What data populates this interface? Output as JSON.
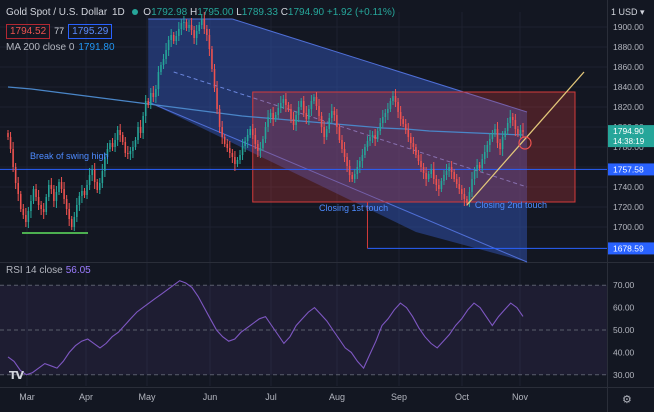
{
  "header": {
    "symbol": "Gold Spot / U.S. Dollar",
    "timeframe": "1D",
    "ohlc": [
      {
        "label": "O",
        "value": "1792.98"
      },
      {
        "label": "H",
        "value": "1795.00"
      },
      {
        "label": "L",
        "value": "1789.33"
      },
      {
        "label": "C",
        "value": "1794.90"
      }
    ],
    "change": "+1.92 (+0.11%)",
    "sell_price": "1794.52",
    "spread": "77",
    "buy_price": "1795.29",
    "ma_label": "MA 200 close 0",
    "ma_value": "1791.80",
    "currency_menu": "1 USD ▾"
  },
  "rsi": {
    "label": "RSI 14 close",
    "value": "56.05",
    "ticks": [
      "70.00",
      "60.00",
      "50.00",
      "40.00",
      "30.00"
    ]
  },
  "colors": {
    "up": "#26a69a",
    "down": "#ef5350",
    "ma": "#4a86c8",
    "rsi": "#7e57c2",
    "channel": "#2f4ea8",
    "rect": "#d43b3b",
    "trend": "#e3c77a",
    "hline": "#2962ff",
    "green": "#4caf50"
  },
  "annotations": {
    "break_swing_high": "Break of swing high",
    "closing_1st": "Closing 1st touch",
    "closing_2nd": "Closing 2nd touch"
  },
  "tv_logo": "TV",
  "chart_data": {
    "type": "candlestick",
    "title": "Gold Spot / U.S. Dollar",
    "timeframe": "1D",
    "price_axis": {
      "ticks": [
        1700,
        1720,
        1740,
        1760,
        1780,
        1800,
        1820,
        1840,
        1860,
        1880,
        1900
      ],
      "ylim": [
        1665,
        1915
      ],
      "unit": "USD"
    },
    "x_labels": [
      "Mar",
      "Apr",
      "May",
      "Jun",
      "Jul",
      "Aug",
      "Sep",
      "Oct",
      "Nov"
    ],
    "price_labels": [
      {
        "text": "1794.90",
        "sub": "14:38:19",
        "price": 1794.9
      },
      {
        "text": "1757.58",
        "price": 1757.58
      },
      {
        "text": "1678.59",
        "price": 1678.59
      }
    ],
    "close_series": [
      1790,
      1778,
      1760,
      1744,
      1733,
      1718,
      1712,
      1705,
      1716,
      1726,
      1738,
      1730,
      1722,
      1718,
      1715,
      1730,
      1742,
      1738,
      1726,
      1735,
      1745,
      1738,
      1728,
      1718,
      1708,
      1700,
      1710,
      1722,
      1731,
      1736,
      1732,
      1742,
      1752,
      1758,
      1745,
      1737,
      1744,
      1756,
      1770,
      1778,
      1784,
      1780,
      1787,
      1797,
      1792,
      1785,
      1774,
      1773,
      1776,
      1780,
      1787,
      1800,
      1794,
      1811,
      1826,
      1822,
      1834,
      1830,
      1838,
      1855,
      1862,
      1868,
      1877,
      1887,
      1892,
      1886,
      1891,
      1898,
      1904,
      1905,
      1899,
      1902,
      1897,
      1889,
      1896,
      1902,
      1908,
      1898,
      1892,
      1878,
      1858,
      1839,
      1818,
      1800,
      1790,
      1783,
      1779,
      1774,
      1770,
      1763,
      1767,
      1772,
      1781,
      1786,
      1792,
      1798,
      1792,
      1783,
      1776,
      1779,
      1788,
      1800,
      1810,
      1814,
      1808,
      1812,
      1819,
      1824,
      1828,
      1822,
      1818,
      1808,
      1802,
      1812,
      1820,
      1826,
      1814,
      1808,
      1818,
      1826,
      1830,
      1821,
      1811,
      1800,
      1790,
      1798,
      1809,
      1816,
      1812,
      1800,
      1787,
      1778,
      1770,
      1761,
      1752,
      1748,
      1753,
      1760,
      1766,
      1772,
      1780,
      1786,
      1790,
      1792,
      1788,
      1796,
      1804,
      1810,
      1814,
      1818,
      1826,
      1831,
      1825,
      1815,
      1808,
      1803,
      1797,
      1790,
      1784,
      1780,
      1772,
      1766,
      1760,
      1754,
      1748,
      1753,
      1758,
      1748,
      1742,
      1738,
      1746,
      1752,
      1756,
      1760,
      1755,
      1748,
      1743,
      1738,
      1733,
      1728,
      1724,
      1735,
      1748,
      1756,
      1762,
      1759,
      1768,
      1775,
      1782,
      1788,
      1794,
      1798,
      1784,
      1778,
      1790,
      1796,
      1804,
      1810,
      1807,
      1798,
      1793,
      1797,
      1794.9
    ],
    "ma200": [
      1840,
      1838,
      1835,
      1832,
      1829,
      1826,
      1823,
      1820,
      1817,
      1814,
      1811,
      1809,
      1807,
      1805,
      1803,
      1801,
      1799,
      1798,
      1796,
      1795,
      1794,
      1793,
      1792
    ],
    "rsi14": [
      38,
      36,
      32,
      30,
      31,
      33,
      35,
      34,
      33,
      36,
      40,
      43,
      45,
      46,
      44,
      42,
      44,
      47,
      49,
      52,
      55,
      58,
      60,
      62,
      64,
      66,
      68,
      70,
      72,
      71,
      69,
      65,
      60,
      55,
      50,
      47,
      45,
      46,
      49,
      51,
      53,
      55,
      56,
      52,
      48,
      44,
      47,
      52,
      55,
      58,
      60,
      57,
      54,
      50,
      46,
      42,
      40,
      36,
      33,
      39,
      45,
      52,
      55,
      59,
      62,
      60,
      56,
      51,
      47,
      44,
      42,
      45,
      48,
      52,
      55,
      59,
      62,
      60,
      56,
      52,
      56,
      59,
      62,
      60,
      56.05
    ],
    "overbought": 70,
    "oversold": 30,
    "levels": [
      {
        "price": 1757.58
      },
      {
        "price": 1678.59
      }
    ],
    "notes": [
      "Descending channel",
      "Consolidation range",
      "Rising trendline"
    ]
  }
}
